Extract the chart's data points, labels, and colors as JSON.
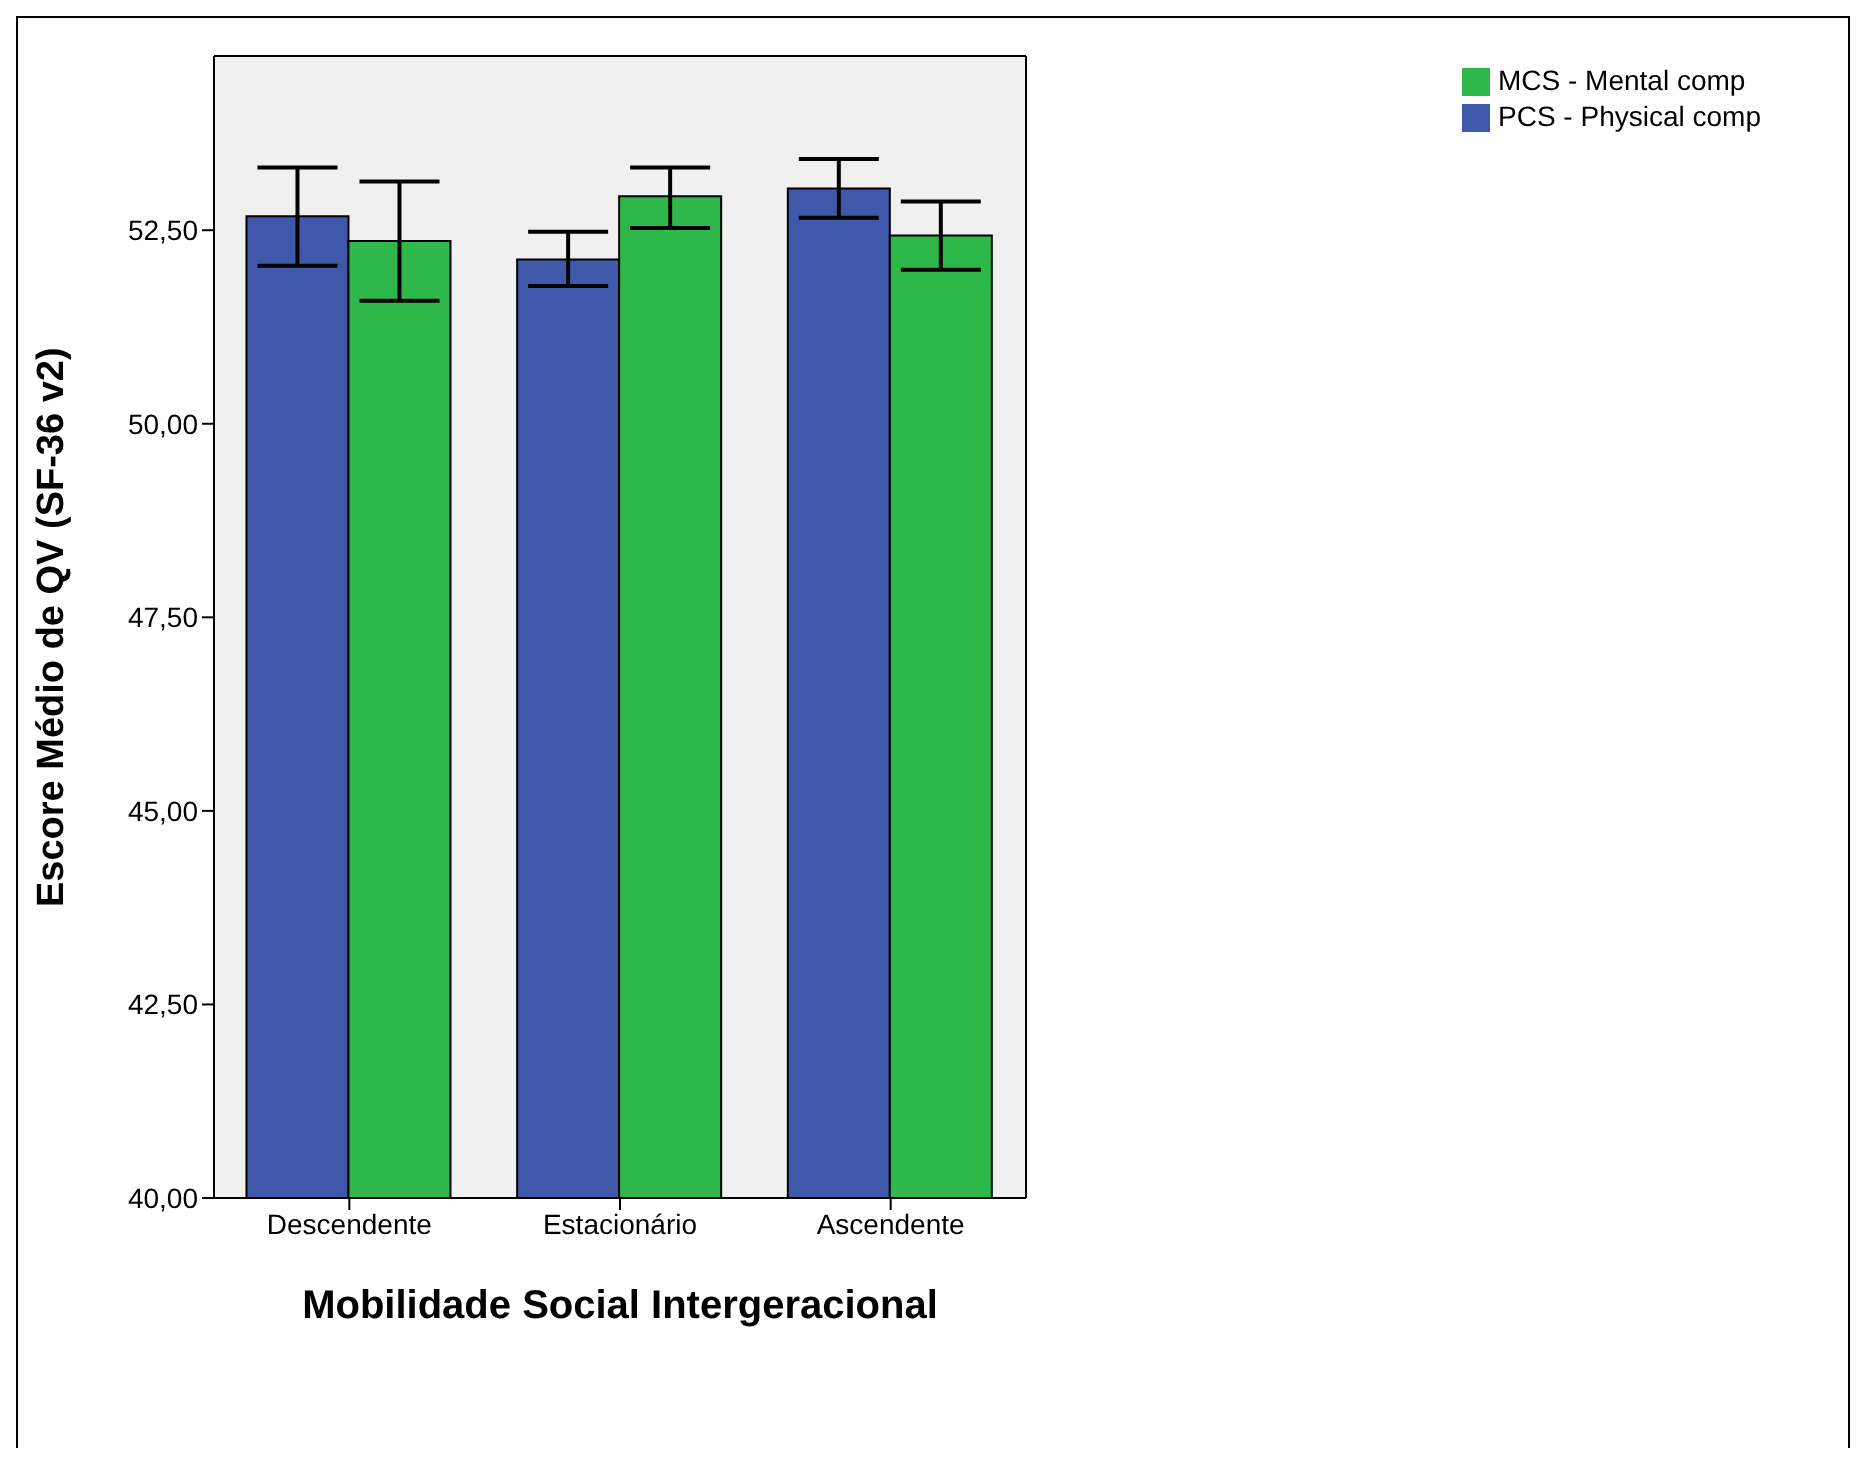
{
  "chart_data": {
    "type": "bar",
    "xlabel": "Mobilidade Social Intergeracional",
    "ylabel": "Escore Médio de QV (SF-36 v2)",
    "categories": [
      "Descendente",
      "Estacionário",
      "Ascendente"
    ],
    "series": [
      {
        "name": "PCS - Physical comp",
        "color": "#3f58aa",
        "values": [
          52.68,
          52.12,
          53.04
        ],
        "errors": [
          [
            52.04,
            53.31
          ],
          [
            51.78,
            52.48
          ],
          [
            52.66,
            53.42
          ]
        ]
      },
      {
        "name": "MCS - Mental comp",
        "color": "#2fb84a",
        "values": [
          52.36,
          52.94,
          52.43
        ],
        "errors": [
          [
            51.59,
            53.13
          ],
          [
            52.53,
            53.31
          ],
          [
            51.99,
            52.87
          ]
        ]
      }
    ],
    "ylim": [
      40,
      54.75
    ],
    "yticks": [
      {
        "value": 40,
        "label": "40,00"
      },
      {
        "value": 42.5,
        "label": "42,50"
      },
      {
        "value": 45,
        "label": "45,00"
      },
      {
        "value": 47.5,
        "label": "47,50"
      },
      {
        "value": 50,
        "label": "50,00"
      },
      {
        "value": 52.5,
        "label": "52,50"
      }
    ],
    "legend": "top right"
  }
}
